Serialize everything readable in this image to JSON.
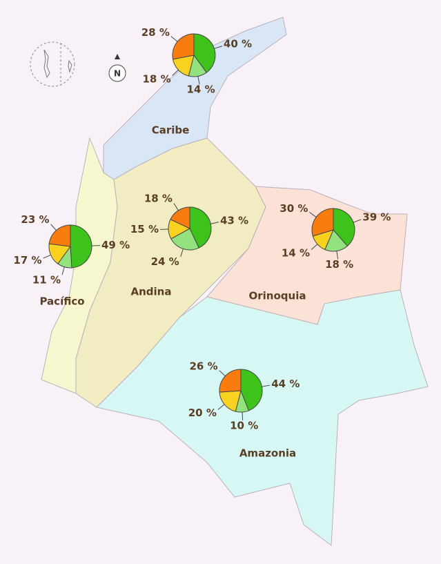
{
  "map": {
    "north_label": "N",
    "colors": [
      "#3ec21c",
      "#93e27f",
      "#f8d21e",
      "#f97c0e"
    ],
    "regions": [
      {
        "name": "Caribe",
        "type": "pie",
        "values": [
          40,
          14,
          18,
          28
        ],
        "value_labels": [
          "40 %",
          "14 %",
          "18 %",
          "28 %"
        ]
      },
      {
        "name": "Andina",
        "type": "pie",
        "values": [
          43,
          24,
          15,
          18
        ],
        "value_labels": [
          "43 %",
          "24 %",
          "15 %",
          "18 %"
        ]
      },
      {
        "name": "Pacífico",
        "type": "pie",
        "values": [
          49,
          11,
          17,
          23
        ],
        "value_labels": [
          "49 %",
          "11 %",
          "17 %",
          "23 %"
        ]
      },
      {
        "name": "Orinoquia",
        "type": "pie",
        "values": [
          39,
          18,
          14,
          30
        ],
        "value_labels": [
          "39 %",
          "18 %",
          "14 %",
          "30 %"
        ]
      },
      {
        "name": "Amazonia",
        "type": "pie",
        "values": [
          44,
          10,
          20,
          26
        ],
        "value_labels": [
          "44 %",
          "10 %",
          "20 %",
          "26 %"
        ]
      }
    ]
  }
}
